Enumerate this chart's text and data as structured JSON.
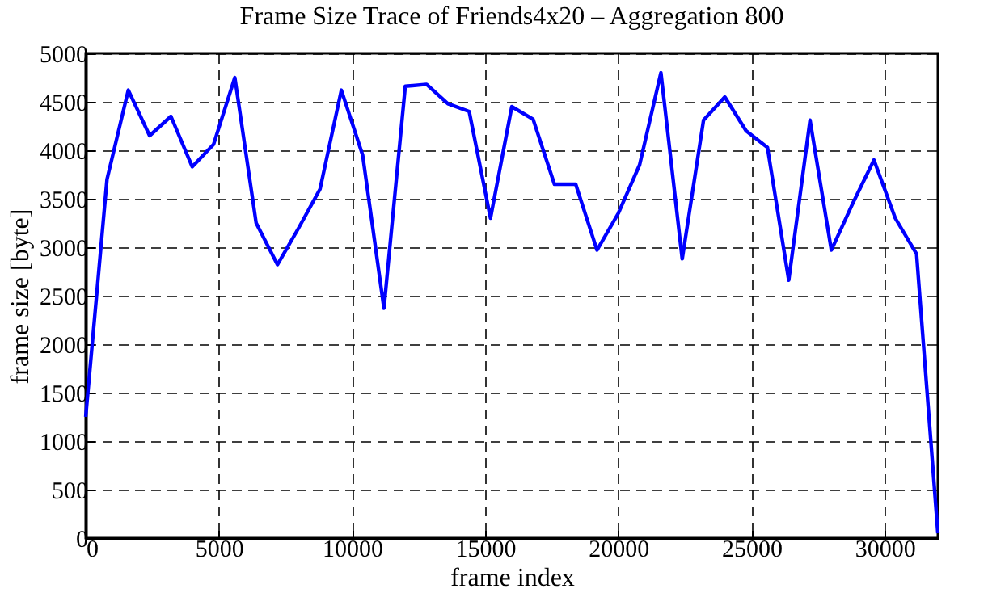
{
  "chart_data": {
    "type": "line",
    "title": "Frame Size Trace of Friends4x20 – Aggregation 800",
    "xlabel": "frame index",
    "ylabel": "frame size [byte]",
    "x": [
      0,
      800,
      1600,
      2400,
      3200,
      4000,
      4800,
      5600,
      6400,
      7200,
      8000,
      8800,
      9600,
      10400,
      11200,
      12000,
      12800,
      13600,
      14400,
      15200,
      16000,
      16800,
      17600,
      18400,
      19200,
      20000,
      20800,
      21600,
      22400,
      23200,
      24000,
      24800,
      25600,
      26400,
      27200,
      28000,
      28800,
      29600,
      30400,
      31200,
      32000
    ],
    "series": [
      {
        "color": "#0000ff",
        "values": [
          1250,
          3700,
          4620,
          4150,
          4350,
          3830,
          4060,
          4750,
          3250,
          2820,
          3200,
          3600,
          4620,
          3950,
          2370,
          4660,
          4680,
          4480,
          4400,
          3300,
          4450,
          4320,
          3650,
          3650,
          2970,
          3350,
          3850,
          4800,
          2880,
          4310,
          4550,
          4200,
          4030,
          2660,
          4310,
          2970,
          3450,
          3900,
          3300,
          2930,
          50
        ]
      }
    ],
    "xlim": [
      0,
      32000
    ],
    "xticks": [
      0,
      5000,
      10000,
      15000,
      20000,
      25000,
      30000
    ],
    "ylim": [
      0,
      5000
    ],
    "yticks": [
      0,
      500,
      1000,
      1500,
      2000,
      2500,
      3000,
      3500,
      4000,
      4500,
      5000
    ],
    "grid": true,
    "legend": false,
    "marker": "none",
    "line_style": "solid"
  }
}
